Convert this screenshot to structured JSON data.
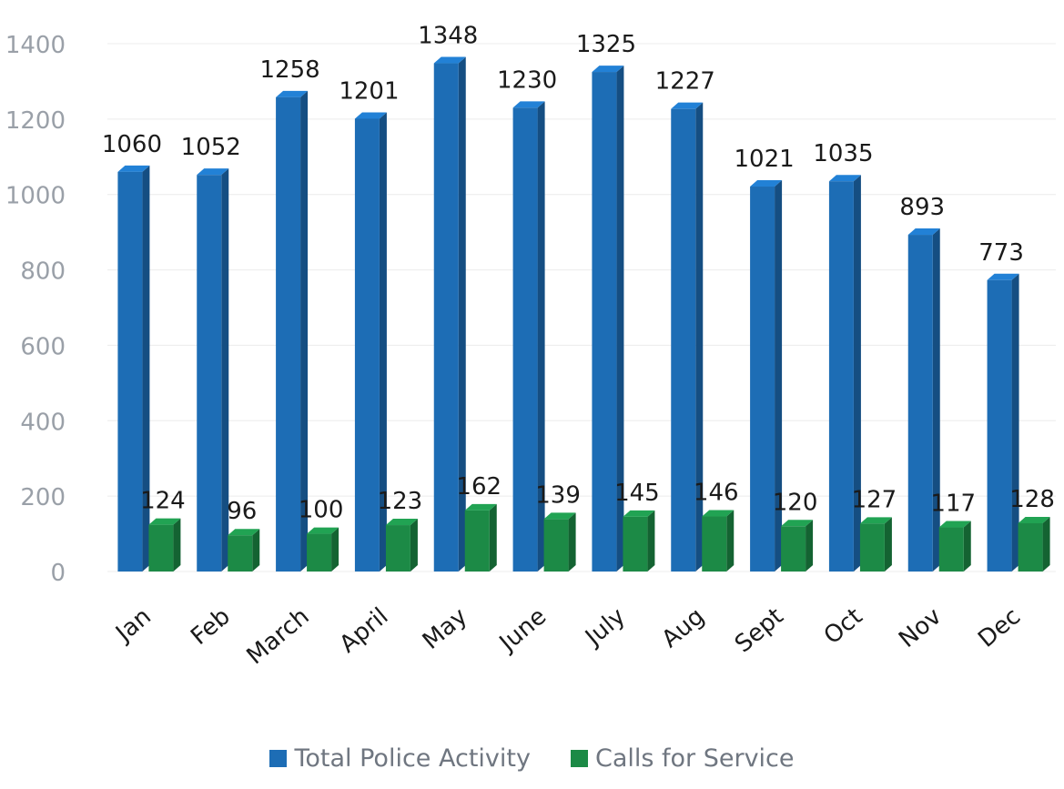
{
  "chart_data": {
    "type": "bar",
    "style": "3d-clustered-column",
    "categories": [
      "Jan",
      "Feb",
      "March",
      "April",
      "May",
      "June",
      "July",
      "Aug",
      "Sept",
      "Oct",
      "Nov",
      "Dec"
    ],
    "series": [
      {
        "name": "Total Police Activity",
        "color": "#1d6db5",
        "values": [
          1060,
          1052,
          1258,
          1201,
          1348,
          1230,
          1325,
          1227,
          1021,
          1035,
          893,
          773
        ]
      },
      {
        "name": "Calls for Service",
        "color": "#1c8a46",
        "values": [
          124,
          96,
          100,
          123,
          162,
          139,
          145,
          146,
          120,
          127,
          117,
          128
        ]
      }
    ],
    "yticks": [
      0,
      200,
      400,
      600,
      800,
      1000,
      1200,
      1400
    ],
    "ylim": [
      0,
      1400
    ],
    "grid": true,
    "legend_position": "bottom",
    "data_labels": true
  }
}
